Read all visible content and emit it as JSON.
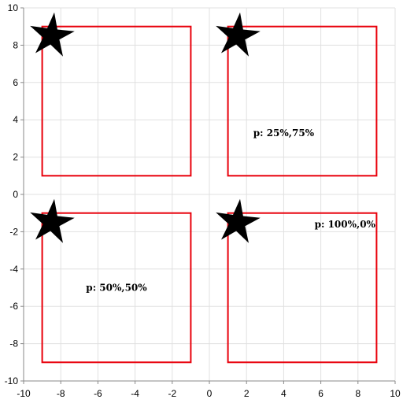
{
  "chart_data": {
    "type": "scatter",
    "title": "",
    "xlabel": "",
    "ylabel": "",
    "xlim": [
      -10,
      10
    ],
    "ylim": [
      -10,
      10
    ],
    "grid": true,
    "x_ticks": [
      "-10",
      "-8",
      "-6",
      "-4",
      "-2",
      "0",
      "2",
      "4",
      "6",
      "8",
      "10"
    ],
    "y_ticks": [
      "10",
      "8",
      "6",
      "4",
      "2",
      "0",
      "-2",
      "-4",
      "-6",
      "-8",
      "-10"
    ],
    "x_tick_values": [
      -10,
      -8,
      -6,
      -4,
      -2,
      0,
      2,
      4,
      6,
      8,
      10
    ],
    "y_tick_values": [
      10,
      8,
      6,
      4,
      2,
      0,
      -2,
      -4,
      -6,
      -8,
      -10
    ],
    "rectangles": [
      {
        "x0": -9,
        "y0": 1,
        "x1": -1,
        "y1": 9
      },
      {
        "x0": 1,
        "y0": 1,
        "x1": 9,
        "y1": 9
      },
      {
        "x0": -9,
        "y0": -9,
        "x1": -1,
        "y1": -1
      },
      {
        "x0": 1,
        "y0": -9,
        "x1": 9,
        "y1": -1
      }
    ],
    "stars": [
      {
        "x": -8.5,
        "y": 8.5
      },
      {
        "x": 1.5,
        "y": 8.5
      },
      {
        "x": -8.5,
        "y": -1.5
      },
      {
        "x": 1.5,
        "y": -1.5
      }
    ],
    "annotations": [
      {
        "text": "p: 25%,75%",
        "x": 4,
        "y": 3.3
      },
      {
        "text": "p: 50%,50%",
        "x": -5,
        "y": -5
      },
      {
        "text": "p: 100%,0%",
        "x": 7.3,
        "y": -1.6
      }
    ],
    "colors": {
      "rect_stroke": "#e8000b",
      "star_fill": "#000000",
      "grid": "#e0e0e0",
      "axis": "#888888"
    }
  }
}
